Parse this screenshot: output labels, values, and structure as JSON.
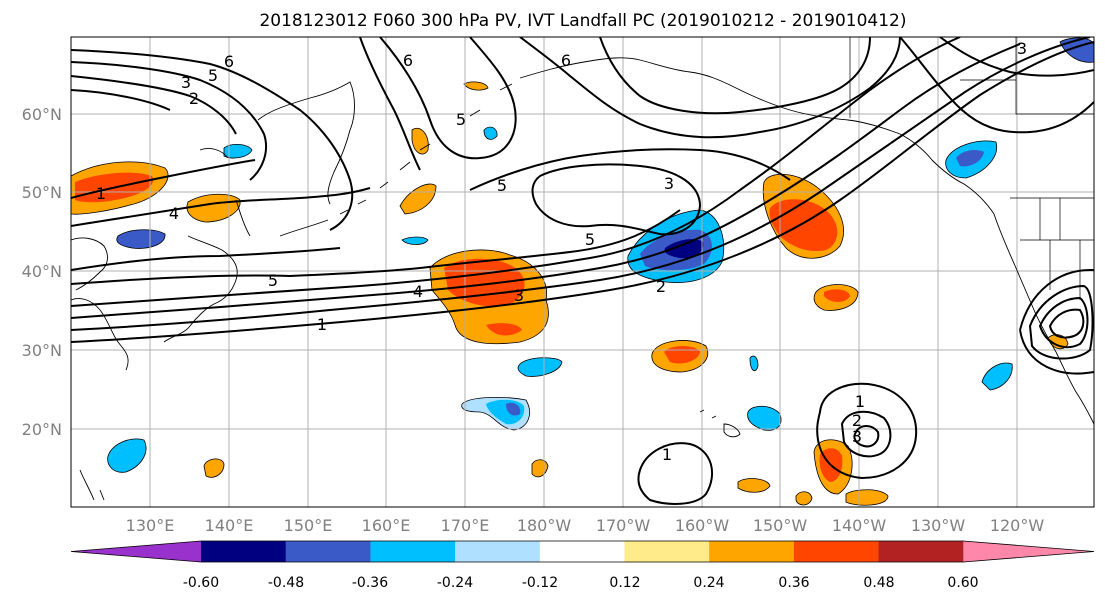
{
  "title": "2018123012 F060 300 hPa PV, IVT Landfall PC (2019010212 - 2019010412)",
  "lat_ticks": [
    "20°N",
    "30°N",
    "40°N",
    "50°N",
    "60°N"
  ],
  "lon_ticks": [
    "130°E",
    "140°E",
    "150°E",
    "160°E",
    "170°E",
    "180°W",
    "170°W",
    "160°W",
    "150°W",
    "140°W",
    "130°W",
    "120°W"
  ],
  "colorbar": {
    "colors": [
      "#9932cc",
      "#000080",
      "#3a5bc7",
      "#00bfff",
      "#b0e0ff",
      "#ffffff",
      "#ffeb8a",
      "#ffa500",
      "#ff4500",
      "#b22222",
      "#ff88aa"
    ],
    "labels": [
      "-0.60",
      "-0.48",
      "-0.36",
      "-0.24",
      "-0.12",
      "0.12",
      "0.24",
      "0.36",
      "0.48",
      "0.60"
    ]
  },
  "contour_labels": [
    "6",
    "5",
    "3",
    "2",
    "6",
    "5",
    "6",
    "3",
    "5",
    "3",
    "1",
    "4",
    "5",
    "5",
    "4",
    "3",
    "2",
    "1",
    "1",
    "2",
    "3",
    "1"
  ]
}
